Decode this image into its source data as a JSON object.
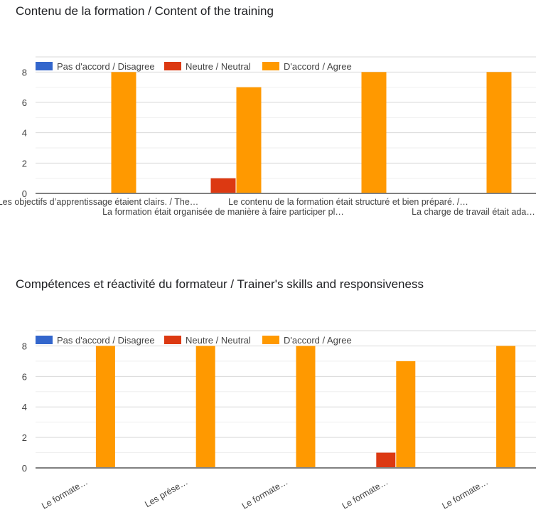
{
  "colors": {
    "disagree": "#3366cc",
    "neutral": "#dc3912",
    "agree": "#ff9900",
    "grid_major": "#d9d9d9",
    "grid_minor": "#efefef",
    "baseline": "#808080",
    "text": "#444444",
    "title": "#202124"
  },
  "chart_data": [
    {
      "type": "bar",
      "title": "Contenu de la formation / Content of the training",
      "xlabel": "",
      "ylabel": "",
      "ylim": [
        0,
        9
      ],
      "yticks": [
        0,
        2,
        4,
        6,
        8
      ],
      "ytick_labels": [
        "0",
        "2",
        "4",
        "6",
        "8"
      ],
      "grid": true,
      "legend_position": "top",
      "label_style": "staggered",
      "categories": [
        "Les objectifs d’apprentissage étaient clairs. / The…",
        "La formation était organisée de manière à faire participer pl…",
        "Le contenu de la formation était structuré et bien préparé. /…",
        "La charge de travail était ada…"
      ],
      "series": [
        {
          "name": "Pas d'accord / Disagree",
          "color_key": "disagree",
          "values": [
            0,
            0,
            0,
            0
          ]
        },
        {
          "name": "Neutre / Neutral",
          "color_key": "neutral",
          "values": [
            0,
            1,
            0,
            0
          ]
        },
        {
          "name": "D'accord / Agree",
          "color_key": "agree",
          "values": [
            8,
            7,
            8,
            8
          ]
        }
      ]
    },
    {
      "type": "bar",
      "title": "Compétences et réactivité du formateur / Trainer's skills and responsiveness",
      "xlabel": "",
      "ylabel": "",
      "ylim": [
        0,
        9
      ],
      "yticks": [
        0,
        2,
        4,
        6,
        8
      ],
      "ytick_labels": [
        "0",
        "2",
        "4",
        "6",
        "8"
      ],
      "grid": true,
      "legend_position": "top",
      "label_style": "rotated",
      "categories": [
        "Le formate…",
        "Les prése…",
        "Le formate…",
        "Le formate…",
        "Le formate…"
      ],
      "series": [
        {
          "name": "Pas d'accord / Disagree",
          "color_key": "disagree",
          "values": [
            0,
            0,
            0,
            0,
            0
          ]
        },
        {
          "name": "Neutre / Neutral",
          "color_key": "neutral",
          "values": [
            0,
            0,
            0,
            1,
            0
          ]
        },
        {
          "name": "D'accord / Agree",
          "color_key": "agree",
          "values": [
            8,
            8,
            8,
            7,
            8
          ]
        }
      ]
    }
  ]
}
